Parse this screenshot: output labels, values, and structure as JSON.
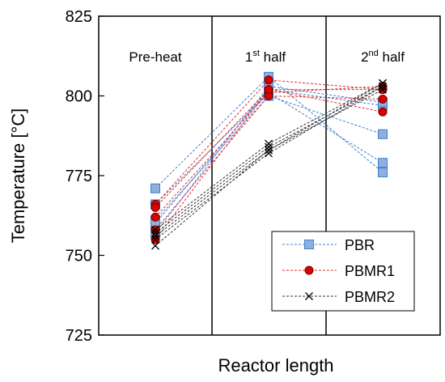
{
  "chart_data": {
    "type": "line",
    "xlabel": "Reactor length",
    "ylabel": "Temperature [°C]",
    "ylim": [
      725,
      825
    ],
    "yticks": [
      725,
      750,
      775,
      800,
      825
    ],
    "categories": [
      "Pre-heat",
      "1st half",
      "2nd half"
    ],
    "section_labels": [
      {
        "base": "Pre-heat",
        "sup": "",
        "rest": ""
      },
      {
        "base": "1",
        "sup": "st",
        "rest": " half"
      },
      {
        "base": "2",
        "sup": "nd",
        "rest": " half"
      }
    ],
    "grid": false,
    "legend_position": "bottom-right",
    "series": [
      {
        "name": "PBR",
        "color": "#3f7fd0",
        "fill": "#8fb0dc",
        "marker": "square",
        "runs": [
          [
            771,
            806,
            776
          ],
          [
            766,
            801,
            779
          ],
          [
            761,
            800,
            788
          ],
          [
            760,
            802,
            797
          ],
          [
            757,
            803,
            798
          ]
        ]
      },
      {
        "name": "PBMR1",
        "color": "#e03030",
        "fill": "#d90000",
        "marker": "circle",
        "runs": [
          [
            766,
            805,
            802
          ],
          [
            765,
            802,
            795
          ],
          [
            762,
            801,
            803
          ],
          [
            758,
            800,
            799
          ],
          [
            755,
            802,
            802
          ]
        ]
      },
      {
        "name": "PBMR2",
        "color": "#333333",
        "fill": "#000000",
        "marker": "x",
        "runs": [
          [
            758,
            785,
            804
          ],
          [
            757,
            784,
            803
          ],
          [
            756,
            783,
            802
          ],
          [
            755,
            782,
            803
          ],
          [
            753,
            783,
            804
          ]
        ]
      }
    ]
  }
}
